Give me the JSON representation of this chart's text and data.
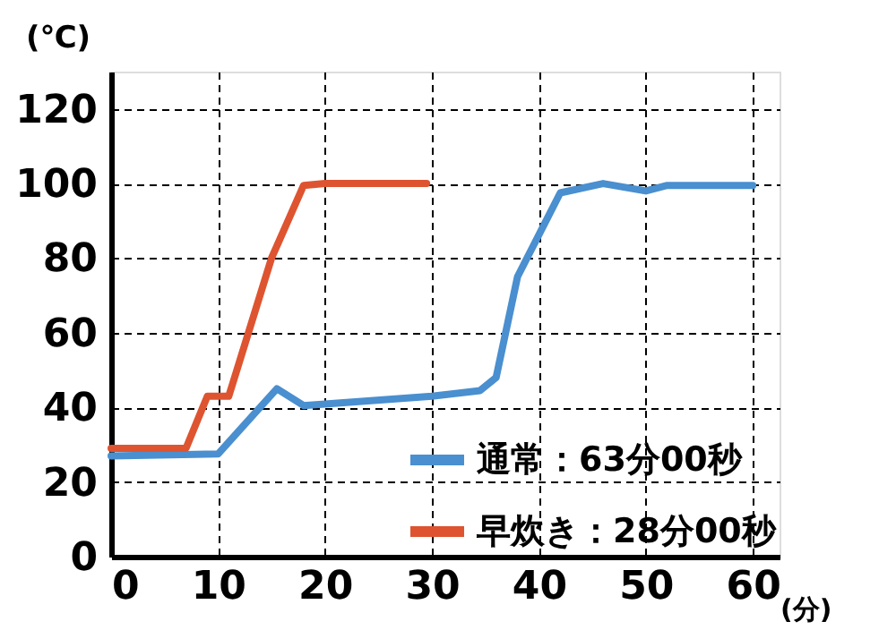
{
  "chart_data": {
    "type": "line",
    "xlabel": "(分)",
    "ylabel": "(℃)",
    "xlim": [
      0,
      62.5
    ],
    "ylim": [
      0,
      130
    ],
    "xticks": [
      0,
      10,
      20,
      30,
      40,
      50,
      60
    ],
    "yticks": [
      0,
      20,
      40,
      60,
      80,
      100,
      120
    ],
    "grid": true,
    "legend": "bottom right",
    "line_style": "solid",
    "series": [
      {
        "name": "通常：63分00秒",
        "color": "#4a8fcf",
        "x": [
          0,
          10,
          15.5,
          18,
          30,
          34.5,
          36,
          38,
          42,
          46,
          50,
          52,
          60
        ],
        "values": [
          27,
          27.5,
          45,
          40.5,
          43,
          44.5,
          48,
          75,
          97.5,
          100,
          98,
          99.5,
          99.5
        ]
      },
      {
        "name": "早炊き：28分00秒",
        "color": "#de5430",
        "x": [
          0,
          7,
          9,
          11,
          15,
          18,
          20,
          29.5
        ],
        "values": [
          29,
          29,
          43,
          43,
          80,
          99.5,
          100,
          100
        ]
      }
    ]
  }
}
